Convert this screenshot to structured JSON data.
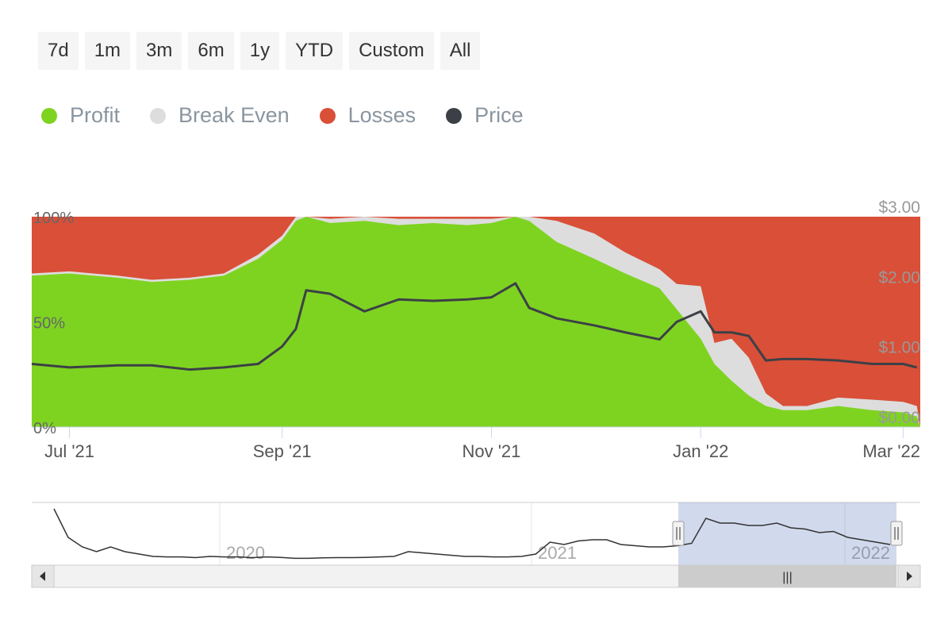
{
  "range_selector": {
    "buttons": [
      "7d",
      "1m",
      "3m",
      "6m",
      "1y",
      "YTD",
      "Custom",
      "All"
    ]
  },
  "legend": [
    {
      "label": "Profit",
      "color": "#7ed321"
    },
    {
      "label": "Break Even",
      "color": "#dddddd"
    },
    {
      "label": "Losses",
      "color": "#d94f38"
    },
    {
      "label": "Price",
      "color": "#3c4046"
    }
  ],
  "chart_data": {
    "type": "area",
    "stacked": true,
    "x_ticks": [
      "Jul '21",
      "Sep '21",
      "Nov '21",
      "Jan '22",
      "Mar '22"
    ],
    "left_axis": {
      "ticks": [
        "0%",
        "50%",
        "100%"
      ],
      "ylim": [
        0,
        100
      ],
      "unit": "%"
    },
    "right_axis": {
      "ticks": [
        "$0.00",
        "$1.00",
        "$2.00",
        "$3.00"
      ],
      "ylim": [
        0,
        3
      ]
    },
    "dates": [
      "2021-06-20",
      "2021-07-01",
      "2021-07-15",
      "2021-07-25",
      "2021-08-05",
      "2021-08-15",
      "2021-08-25",
      "2021-09-01",
      "2021-09-05",
      "2021-09-08",
      "2021-09-15",
      "2021-09-25",
      "2021-10-05",
      "2021-10-15",
      "2021-10-25",
      "2021-11-01",
      "2021-11-08",
      "2021-11-12",
      "2021-11-20",
      "2021-12-01",
      "2021-12-10",
      "2021-12-20",
      "2021-12-25",
      "2022-01-01",
      "2022-01-05",
      "2022-01-10",
      "2022-01-15",
      "2022-01-20",
      "2022-01-25",
      "2022-02-01",
      "2022-02-10",
      "2022-02-20",
      "2022-03-01",
      "2022-03-05"
    ],
    "series": [
      {
        "name": "Profit",
        "values": [
          72,
          73,
          71,
          69,
          70,
          72,
          80,
          89,
          98,
          100,
          97,
          98,
          96,
          97,
          96,
          97,
          100,
          98,
          88,
          80,
          73,
          66,
          56,
          42,
          30,
          22,
          15,
          10,
          8,
          8,
          10,
          8,
          7,
          5
        ]
      },
      {
        "name": "Break Even",
        "values": [
          1,
          1,
          1,
          1,
          1,
          1,
          2,
          2,
          2,
          0,
          2,
          2,
          3,
          2,
          3,
          2,
          0,
          2,
          10,
          12,
          10,
          9,
          12,
          25,
          10,
          20,
          18,
          6,
          2,
          2,
          4,
          5,
          5,
          5
        ]
      },
      {
        "name": "Losses",
        "values": [
          27,
          26,
          28,
          30,
          29,
          27,
          18,
          9,
          0,
          0,
          1,
          0,
          1,
          1,
          1,
          1,
          0,
          0,
          2,
          8,
          17,
          25,
          32,
          33,
          60,
          58,
          67,
          84,
          90,
          90,
          86,
          87,
          88,
          90
        ]
      },
      {
        "name": "Price",
        "values": [
          0.9,
          0.85,
          0.88,
          0.88,
          0.82,
          0.85,
          0.9,
          1.15,
          1.4,
          1.95,
          1.9,
          1.65,
          1.82,
          1.8,
          1.82,
          1.85,
          2.05,
          1.7,
          1.55,
          1.45,
          1.35,
          1.25,
          1.5,
          1.65,
          1.35,
          1.35,
          1.3,
          0.95,
          0.97,
          0.97,
          0.95,
          0.9,
          0.9,
          0.85
        ]
      }
    ]
  },
  "navigator": {
    "labels": [
      "2020",
      "2021",
      "2022"
    ],
    "price_values": [
      2.8,
      1.6,
      1.2,
      1.0,
      1.2,
      1.0,
      0.9,
      0.8,
      0.78,
      0.78,
      0.75,
      0.8,
      0.78,
      0.78,
      0.75,
      0.78,
      0.76,
      0.72,
      0.72,
      0.74,
      0.75,
      0.75,
      0.76,
      0.78,
      0.8,
      1.0,
      0.95,
      0.9,
      0.85,
      0.8,
      0.8,
      0.78,
      0.78,
      0.8,
      0.9,
      1.4,
      1.3,
      1.45,
      1.5,
      1.5,
      1.3,
      1.25,
      1.2,
      1.2,
      1.25,
      1.35,
      2.4,
      2.2,
      2.2,
      2.1,
      2.1,
      2.2,
      2.0,
      1.95,
      1.8,
      1.85,
      1.6,
      1.5,
      1.4,
      1.3
    ],
    "handle_label": "|||"
  }
}
